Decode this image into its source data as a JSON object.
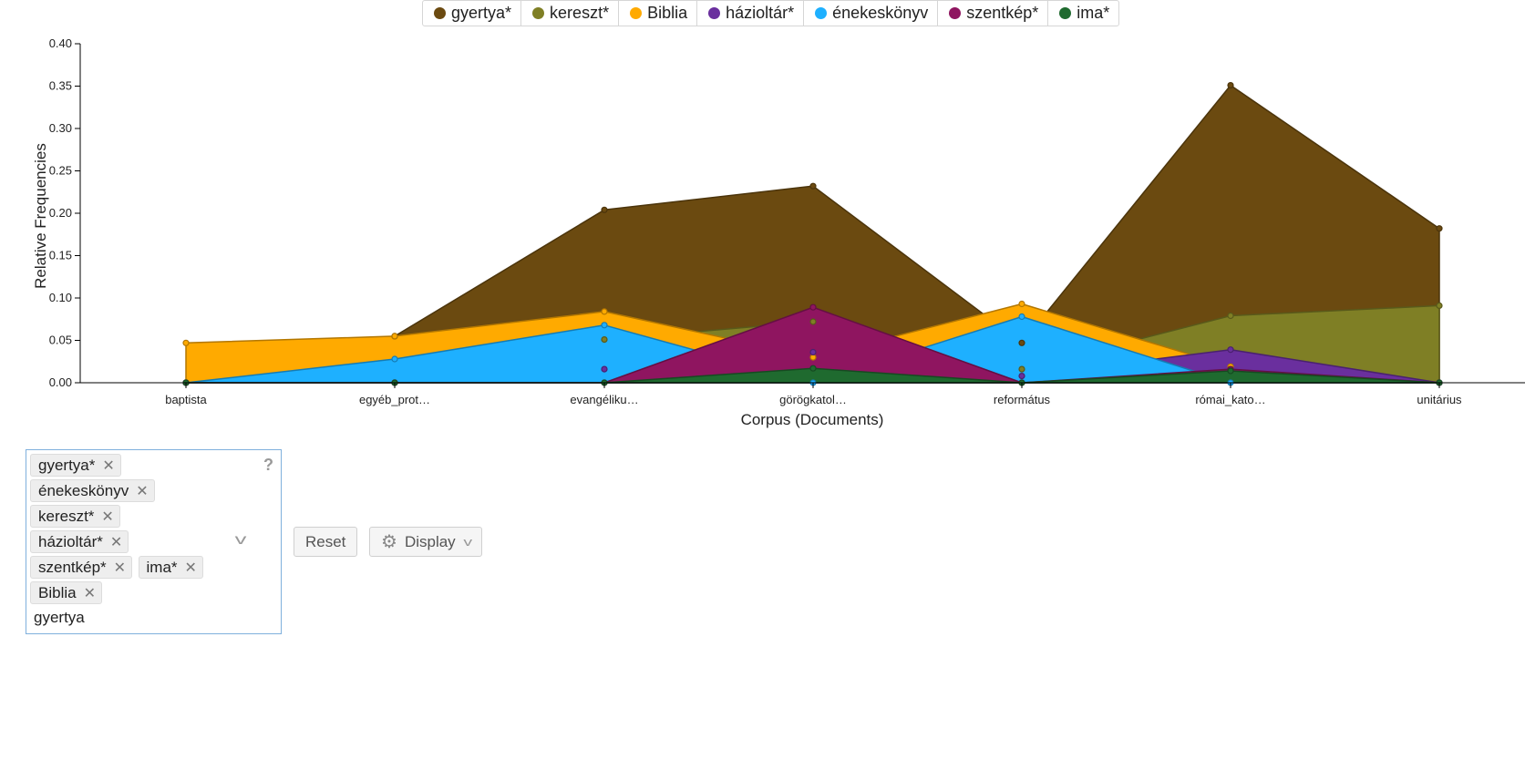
{
  "chart_data": {
    "type": "area",
    "xlabel": "Corpus (Documents)",
    "ylabel": "Relative Frequencies",
    "ylim": [
      0,
      0.4
    ],
    "yticks": [
      "0.00",
      "0.05",
      "0.10",
      "0.15",
      "0.20",
      "0.25",
      "0.30",
      "0.35",
      "0.40"
    ],
    "categories": [
      "baptista",
      "egyéb_prot…",
      "evangéliku…",
      "görögkatol…",
      "református",
      "római_kato…",
      "unitárius"
    ],
    "legend_position": "top",
    "series": [
      {
        "name": "gyertya*",
        "color": "#6b4a10",
        "values": [
          0.0,
          0.055,
          0.204,
          0.232,
          0.047,
          0.351,
          0.182
        ]
      },
      {
        "name": "kereszt*",
        "color": "#7f7f25",
        "values": [
          0.0,
          0.0,
          0.051,
          0.072,
          0.016,
          0.079,
          0.091
        ]
      },
      {
        "name": "Biblia",
        "color": "#ffaa00",
        "values": [
          0.047,
          0.055,
          0.084,
          0.03,
          0.093,
          0.019,
          0.0
        ]
      },
      {
        "name": "házioltár*",
        "color": "#6a2f9e",
        "values": [
          0.0,
          0.0,
          0.016,
          0.036,
          0.008,
          0.039,
          0.0
        ]
      },
      {
        "name": "énekeskönyv",
        "color": "#1eb0ff",
        "values": [
          0.0,
          0.028,
          0.068,
          0.0,
          0.078,
          0.0,
          0.0
        ]
      },
      {
        "name": "szentkép*",
        "color": "#8f1560",
        "values": [
          0.0,
          0.0,
          0.0,
          0.089,
          0.0,
          0.016,
          0.0
        ]
      },
      {
        "name": "ima*",
        "color": "#1f6a2f",
        "values": [
          0.0,
          0.0,
          0.0,
          0.017,
          0.0,
          0.014,
          0.0
        ]
      }
    ]
  },
  "controls": {
    "tags": [
      "gyertya*",
      "énekeskönyv",
      "kereszt*",
      "házioltár*",
      "szentkép*",
      "ima*",
      "Biblia"
    ],
    "remove_glyph": "✕",
    "search_text": "gyertya",
    "help_glyph": "?",
    "dropdown_glyph": "v",
    "reset_label": "Reset",
    "display_label": "Display"
  }
}
